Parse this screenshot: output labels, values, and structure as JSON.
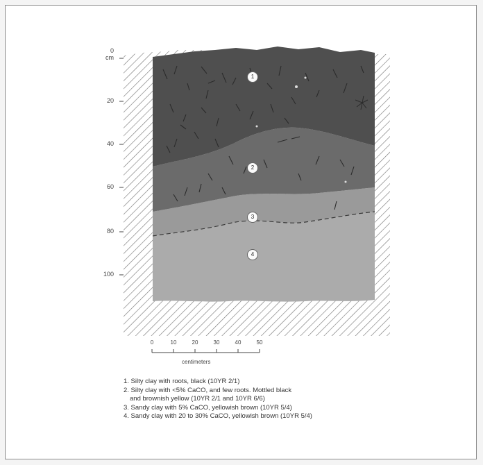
{
  "figure": {
    "depth_axis": {
      "unit": "cm",
      "labels": [
        "0",
        "20",
        "40",
        "60",
        "80",
        "100"
      ]
    },
    "horizon_markers": [
      "1",
      "2",
      "3",
      "4"
    ],
    "scale_bar": {
      "ticks": [
        "0",
        "10",
        "20",
        "30",
        "40",
        "50"
      ],
      "unit_label": "centimeters"
    },
    "legend": [
      "1. Silty clay with roots, black (10YR 2/1)",
      "2. Silty clay with <5% CaCO, and few roots. Mottled black",
      "and brownish yellow (10YR 2/1 and 10YR 6/6)",
      "3. Sandy clay with 5% CaCO, yellowish brown (10YR 5/4)",
      "4. Sandy clay with 20 to 30% CaCO, yellowish brown (10YR 5/4)"
    ],
    "colors": {
      "horizon_1": "#4f4f4f",
      "horizon_2": "#6b6b6b",
      "horizon_3": "#9a9a9a",
      "horizon_4": "#ababab",
      "hatch": "#777777"
    }
  }
}
